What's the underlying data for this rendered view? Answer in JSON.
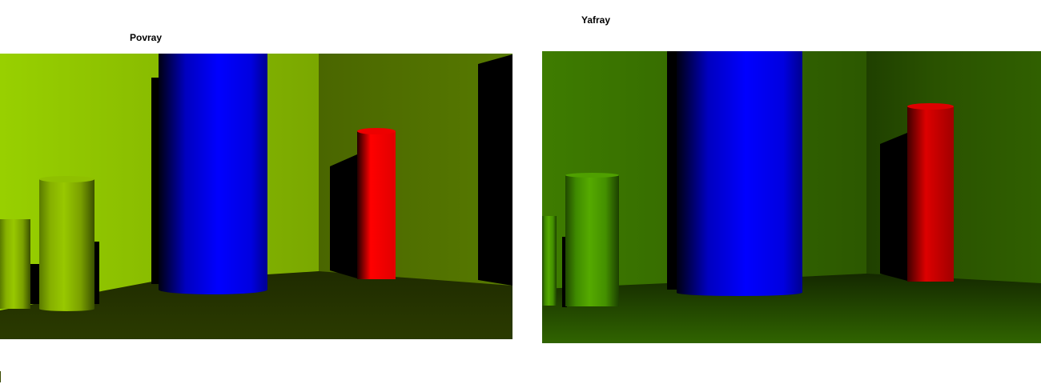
{
  "captions": {
    "left": "Povray",
    "right": "Yafray"
  },
  "colors": {
    "povray_wall_left": "#98d000",
    "povray_wall_right": "#4e6b00",
    "povray_floor": "#243000",
    "yafray_wall_left": "#3f7a00",
    "yafray_wall_right": "#244800",
    "yafray_floor": "#1a3000",
    "blue_cylinder": "#0000ff",
    "red_cylinder": "#ff0000"
  }
}
